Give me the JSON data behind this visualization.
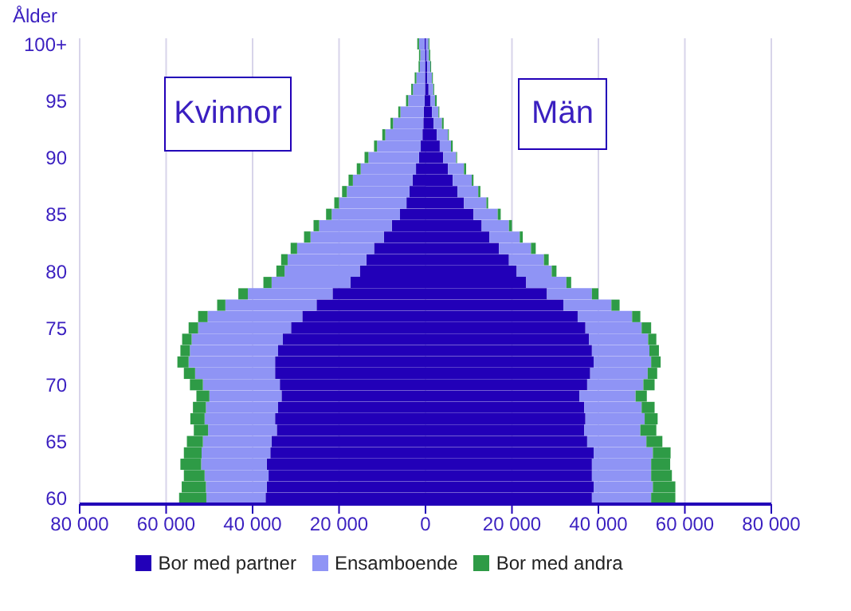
{
  "chart_data": {
    "type": "bar",
    "orientation": "horizontal",
    "stacked": true,
    "ylabel": "Ålder",
    "categories": [
      "100+",
      null,
      null,
      null,
      null,
      "95",
      null,
      null,
      null,
      null,
      "90",
      null,
      null,
      null,
      null,
      "85",
      null,
      null,
      null,
      null,
      "80",
      null,
      null,
      null,
      null,
      "75",
      null,
      null,
      null,
      null,
      "70",
      null,
      null,
      null,
      null,
      "65",
      null,
      null,
      null,
      null,
      "60"
    ],
    "series": [
      {
        "name": "Bor med partner",
        "color": "#2200b8",
        "values": [
          -200,
          -100,
          -100,
          -100,
          -100,
          -200,
          -400,
          -500,
          -700,
          -1100,
          -1500,
          -2200,
          -3000,
          -3700,
          -4400,
          -5900,
          -7800,
          -9600,
          -11900,
          -13700,
          -15200,
          -17400,
          -21500,
          -25200,
          -28500,
          -31100,
          -33000,
          -34100,
          -34800,
          -34800,
          -33700,
          -33300,
          -34100,
          -34800,
          -34400,
          -35600,
          -35900,
          -36700,
          -36300,
          -36700,
          -37000
        ]
      },
      {
        "name": "Ensamboende",
        "color": "#8f94f5",
        "values": [
          -1300,
          -1100,
          -1200,
          -2000,
          -2800,
          -3800,
          -5400,
          -7000,
          -8600,
          -10100,
          -11700,
          -12800,
          -13800,
          -14500,
          -15600,
          -15800,
          -16800,
          -17000,
          -17800,
          -18200,
          -17400,
          -18200,
          -19600,
          -21100,
          -21900,
          -21500,
          -21100,
          -20400,
          -20000,
          -18500,
          -17800,
          -16700,
          -16700,
          -16300,
          -15900,
          -15900,
          -15900,
          -15200,
          -14800,
          -14100,
          -13700
        ]
      },
      {
        "name": "Bor med andra",
        "color": "#2e9b46",
        "values": [
          -400,
          -300,
          -300,
          -400,
          -400,
          -500,
          -500,
          -600,
          -700,
          -700,
          -900,
          -900,
          -1000,
          -1100,
          -1100,
          -1300,
          -1300,
          -1500,
          -1500,
          -1500,
          -1900,
          -1900,
          -2200,
          -1900,
          -2200,
          -2200,
          -2200,
          -2200,
          -2600,
          -2600,
          -3000,
          -3000,
          -3000,
          -3300,
          -3300,
          -3700,
          -4100,
          -4800,
          -4800,
          -5600,
          -6300
        ]
      },
      {
        "color": "#2200b8",
        "values": [
          100,
          200,
          400,
          400,
          700,
          1100,
          1500,
          1900,
          2600,
          3300,
          4100,
          5200,
          6300,
          7400,
          8900,
          11100,
          13000,
          14800,
          17000,
          19300,
          21100,
          23300,
          28100,
          31900,
          35200,
          37000,
          37800,
          38500,
          38900,
          38100,
          37400,
          35600,
          36700,
          37000,
          36700,
          37400,
          38900,
          38500,
          38500,
          38900,
          38500
        ]
      },
      {
        "color": "#8f94f5",
        "values": [
          600,
          600,
          700,
          1100,
          1100,
          1100,
          1500,
          1900,
          2600,
          2600,
          3000,
          3700,
          4400,
          4800,
          5200,
          5600,
          6300,
          7000,
          7400,
          8100,
          8100,
          9300,
          10400,
          11100,
          12600,
          13000,
          13700,
          13300,
          13300,
          13300,
          13000,
          13000,
          13300,
          13700,
          13000,
          13700,
          13700,
          13700,
          13700,
          13700,
          13700
        ]
      },
      {
        "color": "#2e9b46",
        "values": [
          200,
          300,
          200,
          200,
          200,
          400,
          200,
          400,
          200,
          400,
          200,
          500,
          400,
          500,
          400,
          700,
          700,
          700,
          1100,
          1100,
          1100,
          1100,
          1500,
          1900,
          1900,
          2200,
          1900,
          2200,
          2200,
          2200,
          2600,
          2600,
          3000,
          3000,
          3700,
          3700,
          4100,
          4400,
          4800,
          5200,
          5600
        ]
      }
    ],
    "xlim": [
      -80000,
      80000
    ],
    "xticks": [
      {
        "value": -80000,
        "label": "80 000"
      },
      {
        "value": -60000,
        "label": "60 000"
      },
      {
        "value": -40000,
        "label": "40 000"
      },
      {
        "value": -20000,
        "label": "20 000"
      },
      0,
      {
        "value": 20000,
        "label": "20 000"
      },
      {
        "value": 40000,
        "label": "40 000"
      },
      {
        "value": 60000,
        "label": "60 000"
      },
      {
        "value": 80000,
        "label": "80 000"
      }
    ],
    "grid": "x",
    "legend": "bottom",
    "annotations": [
      "Kvinnor",
      "Män"
    ]
  }
}
